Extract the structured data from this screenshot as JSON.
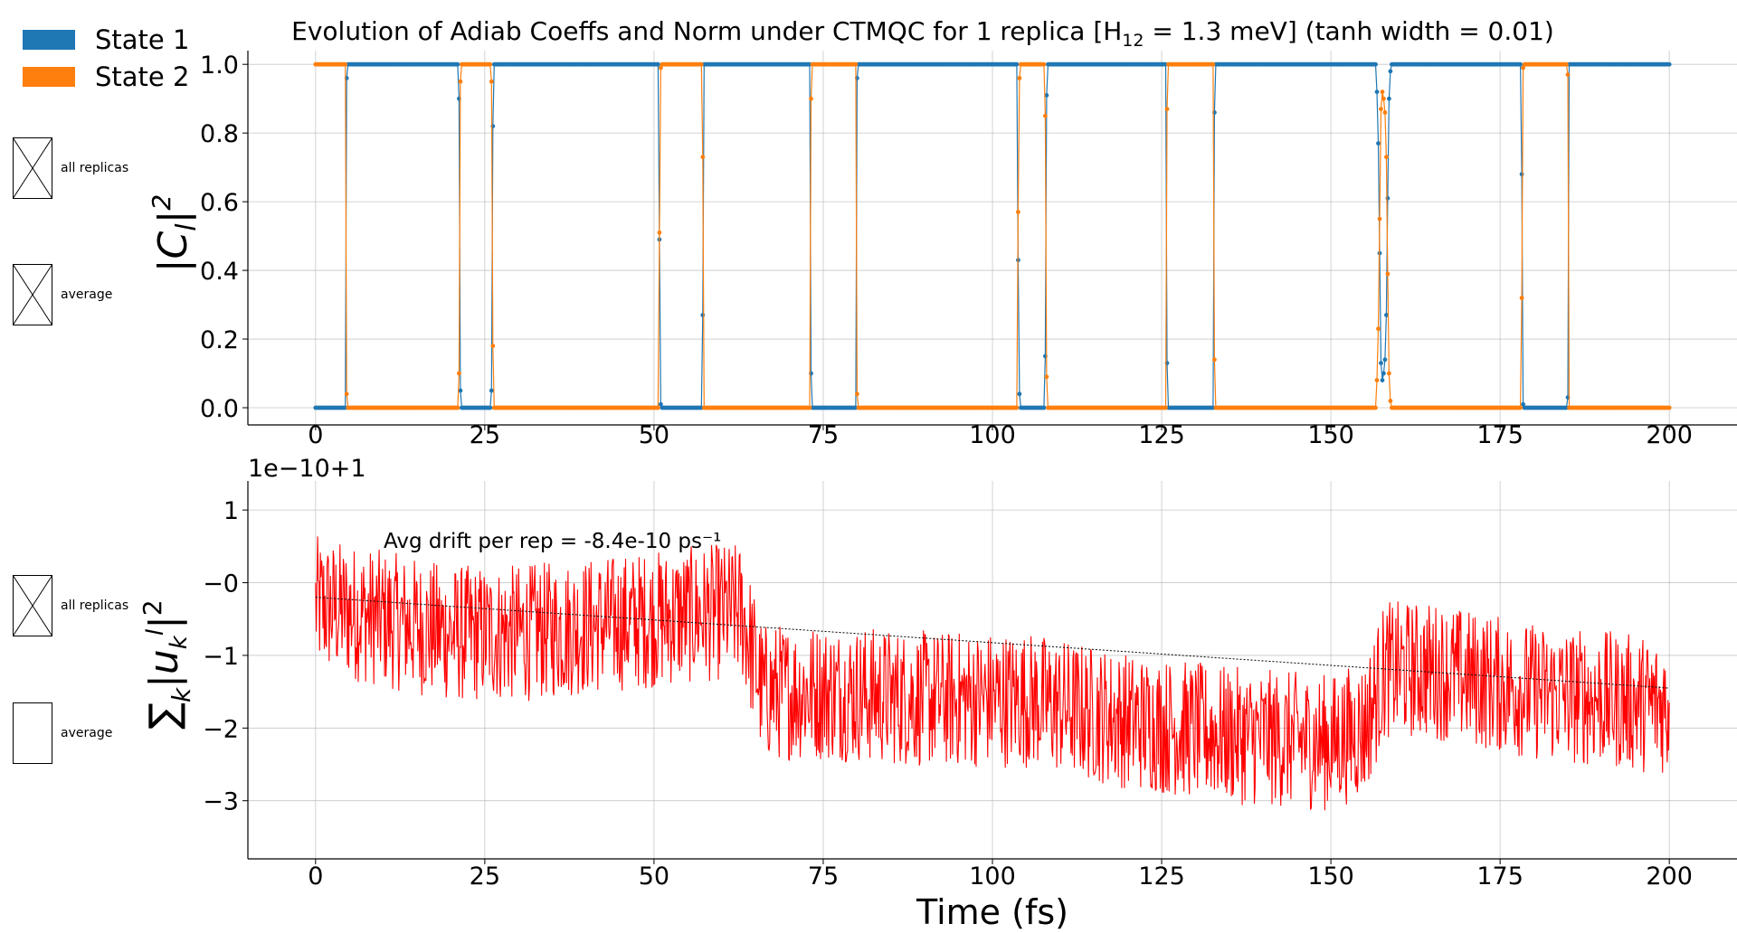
{
  "title": "Evolution of Adiab Coeffs and Norm under CTMQC for 1 replica [H₁₂ = 1.3 meV]   (tanh width = 0.01)",
  "legend": [
    {
      "label": "State 1",
      "color": "#1f77b4"
    },
    {
      "label": "State 2",
      "color": "#ff7f0e"
    }
  ],
  "checkboxes": {
    "top": [
      {
        "label": "all replicas",
        "checked": true
      },
      {
        "label": "average",
        "checked": true
      }
    ],
    "bottom": [
      {
        "label": "all replicas",
        "checked": true
      },
      {
        "label": "average",
        "checked": false
      }
    ]
  },
  "chart_data": [
    {
      "type": "line",
      "title": "Evolution of Adiab Coeffs and Norm under CTMQC for 1 replica [H₁₂ = 1.3 meV]   (tanh width = 0.01)",
      "ylabel": "|C_l|²",
      "xlabel": "",
      "xlim": [
        -10,
        210
      ],
      "ylim": [
        -0.05,
        1.04
      ],
      "xticks": [
        "0",
        "25",
        "50",
        "75",
        "100",
        "125",
        "150",
        "175",
        "200"
      ],
      "xtick_values": [
        0,
        25,
        50,
        75,
        100,
        125,
        150,
        175,
        200
      ],
      "yticks": [
        "0.0",
        "0.2",
        "0.4",
        "0.6",
        "0.8",
        "1.0"
      ],
      "ytick_values": [
        0,
        0.2,
        0.4,
        0.6,
        0.8,
        1.0
      ],
      "grid": true,
      "markers": true,
      "series": [
        {
          "name": "State 1",
          "color": "#1f77b4",
          "x": [
            0,
            4.4,
            4.6,
            4.8,
            21.0,
            21.2,
            21.4,
            21.6,
            25.8,
            26.0,
            26.2,
            26.4,
            50.6,
            50.8,
            51.0,
            51.2,
            57.0,
            57.2,
            57.4,
            57.6,
            73.0,
            73.2,
            73.4,
            73.6,
            79.8,
            80.0,
            80.2,
            80.4,
            103.6,
            103.8,
            104.0,
            104.2,
            107.6,
            107.8,
            108.0,
            108.2,
            125.6,
            125.8,
            126.0,
            126.2,
            132.6,
            132.8,
            133.0,
            133.2,
            156.6,
            156.8,
            157.0,
            157.2,
            157.4,
            157.6,
            157.8,
            158.0,
            158.2,
            158.4,
            158.6,
            158.8,
            159.0,
            159.2,
            159.4,
            159.6,
            178.0,
            178.2,
            178.4,
            178.6,
            184.8,
            185.0,
            185.2,
            185.4,
            200
          ],
          "y": [
            0,
            0,
            0.96,
            1,
            1,
            0.9,
            0.05,
            0,
            0,
            0.05,
            0.82,
            1,
            1,
            0.49,
            0.01,
            0,
            0,
            0.27,
            1,
            1,
            1,
            0.1,
            0,
            0,
            0,
            0.96,
            1,
            1,
            1,
            0.43,
            0.04,
            0,
            0,
            0.15,
            0.91,
            1,
            1,
            0.13,
            0,
            0,
            0,
            0.86,
            1,
            1,
            1,
            0.92,
            0.77,
            0.45,
            0.13,
            0.08,
            0.1,
            0.14,
            0.27,
            0.61,
            0.9,
            0.98,
            1,
            1,
            1,
            1,
            1,
            0.68,
            0.01,
            0,
            0,
            0.03,
            1,
            1,
            1
          ]
        },
        {
          "name": "State 2",
          "color": "#ff7f0e",
          "x": [
            0,
            4.4,
            4.6,
            4.8,
            21.0,
            21.2,
            21.4,
            21.6,
            25.8,
            26.0,
            26.2,
            26.4,
            50.6,
            50.8,
            51.0,
            51.2,
            57.0,
            57.2,
            57.4,
            57.6,
            73.0,
            73.2,
            73.4,
            73.6,
            79.8,
            80.0,
            80.2,
            80.4,
            103.6,
            103.8,
            104.0,
            104.2,
            107.6,
            107.8,
            108.0,
            108.2,
            125.6,
            125.8,
            126.0,
            126.2,
            132.6,
            132.8,
            133.0,
            133.2,
            156.6,
            156.8,
            157.0,
            157.2,
            157.4,
            157.6,
            157.8,
            158.0,
            158.2,
            158.4,
            158.6,
            158.8,
            159.0,
            159.2,
            159.4,
            159.6,
            178.0,
            178.2,
            178.4,
            178.6,
            184.8,
            185.0,
            185.2,
            185.4,
            200
          ],
          "y": [
            1,
            1,
            0.04,
            0,
            0,
            0.1,
            0.95,
            1,
            1,
            0.95,
            0.18,
            0,
            0,
            0.51,
            0.99,
            1,
            1,
            0.73,
            0,
            0,
            0,
            0.9,
            1,
            1,
            1,
            0.04,
            0,
            0,
            0,
            0.57,
            0.96,
            1,
            1,
            0.85,
            0.09,
            0,
            0,
            0.87,
            1,
            1,
            1,
            0.14,
            0,
            0,
            0,
            0.08,
            0.23,
            0.55,
            0.87,
            0.92,
            0.9,
            0.86,
            0.73,
            0.39,
            0.1,
            0.02,
            0,
            0,
            0,
            0,
            0,
            0.32,
            0.99,
            1,
            1,
            0.97,
            0,
            0,
            0
          ]
        }
      ]
    },
    {
      "type": "line",
      "offset_text": "1e−10+1",
      "ylabel": "∑_k |u_k^l|²",
      "xlabel": "Time (fs)",
      "xlim": [
        -10,
        210
      ],
      "ylim": [
        -3.8,
        1.4
      ],
      "xticks": [
        "0",
        "25",
        "50",
        "75",
        "100",
        "125",
        "150",
        "175",
        "200"
      ],
      "xtick_values": [
        0,
        25,
        50,
        75,
        100,
        125,
        150,
        175,
        200
      ],
      "yticks": [
        "1",
        "−0",
        "−1",
        "−2",
        "−3"
      ],
      "ytick_values": [
        1,
        0,
        -1,
        -2,
        -3
      ],
      "grid": true,
      "annotation": "Avg drift per rep = -8.4e-10 ps⁻¹",
      "series": [
        {
          "name": "",
          "color": "#ff0000",
          "x": [
            0,
            10,
            20,
            30,
            40,
            50,
            60,
            63,
            66,
            75,
            90,
            105,
            120,
            135,
            150,
            155,
            158,
            165,
            180,
            200
          ],
          "y": [
            -0.3,
            -0.5,
            -0.7,
            -0.7,
            -0.6,
            -0.5,
            -0.4,
            -0.4,
            -1.5,
            -1.5,
            -1.6,
            -1.6,
            -1.9,
            -2.1,
            -2.2,
            -2.0,
            -1.2,
            -1.2,
            -1.5,
            -1.7
          ]
        },
        {
          "name": "",
          "color": "#000000",
          "x": [
            0,
            200
          ],
          "y": [
            -0.2,
            -1.45
          ]
        }
      ]
    }
  ]
}
